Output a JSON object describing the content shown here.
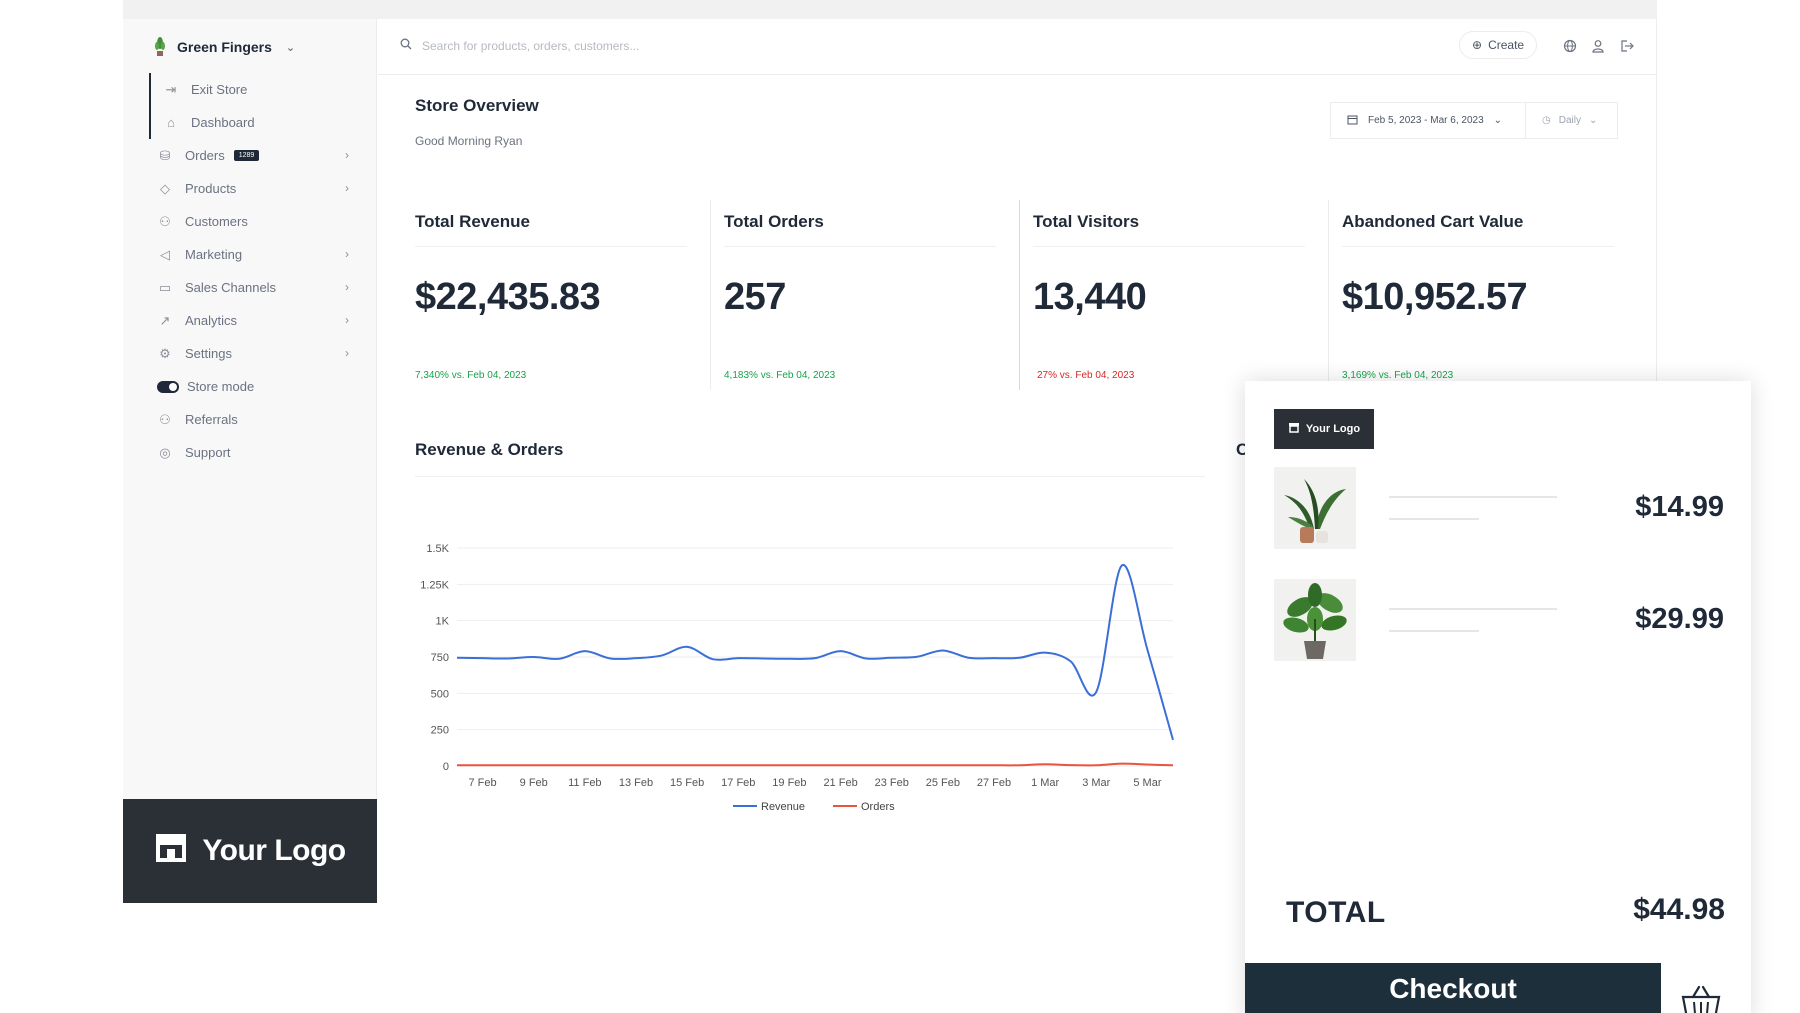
{
  "sidebar": {
    "store_name": "Green Fingers",
    "items": [
      {
        "label": "Exit Store",
        "icon": "exit-icon"
      },
      {
        "label": "Dashboard",
        "icon": "home-icon"
      },
      {
        "label": "Orders",
        "icon": "orders-icon",
        "badge": "1289"
      },
      {
        "label": "Products",
        "icon": "tag-icon"
      },
      {
        "label": "Customers",
        "icon": "users-icon"
      },
      {
        "label": "Marketing",
        "icon": "megaphone-icon"
      },
      {
        "label": "Sales Channels",
        "icon": "store-icon"
      },
      {
        "label": "Analytics",
        "icon": "chart-icon"
      },
      {
        "label": "Settings",
        "icon": "gear-icon"
      },
      {
        "label": "Store mode",
        "icon": "toggle-icon"
      },
      {
        "label": "Referrals",
        "icon": "referral-icon"
      },
      {
        "label": "Support",
        "icon": "support-icon"
      }
    ],
    "logo_text": "Your Logo"
  },
  "header": {
    "search_placeholder": "Search for products, orders, customers...",
    "create_label": "Create"
  },
  "overview": {
    "title": "Store Overview",
    "greeting": "Good Morning Ryan",
    "date_range": "Feb 5, 2023 - Mar 6, 2023",
    "interval": "Daily"
  },
  "kpis": [
    {
      "label": "Total Revenue",
      "value": "$22,435.83",
      "delta": "7,340% vs. Feb 04, 2023",
      "trend": "up"
    },
    {
      "label": "Total Orders",
      "value": "257",
      "delta": "4,183% vs. Feb 04, 2023",
      "trend": "up"
    },
    {
      "label": "Total Visitors",
      "value": "13,440",
      "delta": "27% vs. Feb 04, 2023",
      "trend": "down"
    },
    {
      "label": "Abandoned Cart Value",
      "value": "$10,952.57",
      "delta": "3,169% vs. Feb 04, 2023",
      "trend": "up"
    }
  ],
  "chart_section": {
    "title": "Revenue & Orders",
    "clipped_title": "C"
  },
  "chart_data": {
    "type": "line",
    "title": "Revenue & Orders",
    "ylim": [
      0,
      1500
    ],
    "y_ticks": [
      "0",
      "250",
      "500",
      "750",
      "1K",
      "1.25K",
      "1.5K"
    ],
    "y_tick_values": [
      0,
      250,
      500,
      750,
      1000,
      1250,
      1500
    ],
    "x_tick_labels": [
      "7 Feb",
      "9 Feb",
      "11 Feb",
      "13 Feb",
      "15 Feb",
      "17 Feb",
      "19 Feb",
      "21 Feb",
      "23 Feb",
      "25 Feb",
      "27 Feb",
      "1 Mar",
      "3 Mar",
      "5 Mar"
    ],
    "x": [
      "6 Feb",
      "7 Feb",
      "8 Feb",
      "9 Feb",
      "10 Feb",
      "11 Feb",
      "12 Feb",
      "13 Feb",
      "14 Feb",
      "15 Feb",
      "16 Feb",
      "17 Feb",
      "18 Feb",
      "19 Feb",
      "20 Feb",
      "21 Feb",
      "22 Feb",
      "23 Feb",
      "24 Feb",
      "25 Feb",
      "26 Feb",
      "27 Feb",
      "28 Feb",
      "1 Mar",
      "2 Mar",
      "3 Mar",
      "4 Mar",
      "5 Mar",
      "6 Mar"
    ],
    "series": [
      {
        "name": "Revenue",
        "color": "#3b6fd8",
        "values": [
          745,
          742,
          740,
          750,
          738,
          790,
          740,
          742,
          760,
          820,
          735,
          742,
          740,
          738,
          742,
          790,
          740,
          745,
          752,
          795,
          745,
          742,
          745,
          780,
          720,
          510,
          1380,
          800,
          180
        ]
      },
      {
        "name": "Orders",
        "color": "#e8553f",
        "values": [
          5,
          5,
          5,
          5,
          5,
          5,
          5,
          5,
          5,
          5,
          5,
          5,
          5,
          5,
          5,
          5,
          5,
          5,
          5,
          5,
          5,
          5,
          5,
          12,
          6,
          5,
          16,
          10,
          5
        ]
      }
    ],
    "legend": "bottom"
  },
  "cart": {
    "logo_text": "Your Logo",
    "items": [
      {
        "price": "$14.99",
        "image": "plant-pot-thumbnail"
      },
      {
        "price": "$29.99",
        "image": "plant-pot-thumbnail"
      }
    ],
    "total_label": "TOTAL",
    "total_value": "$44.98",
    "checkout_label": "Checkout"
  }
}
